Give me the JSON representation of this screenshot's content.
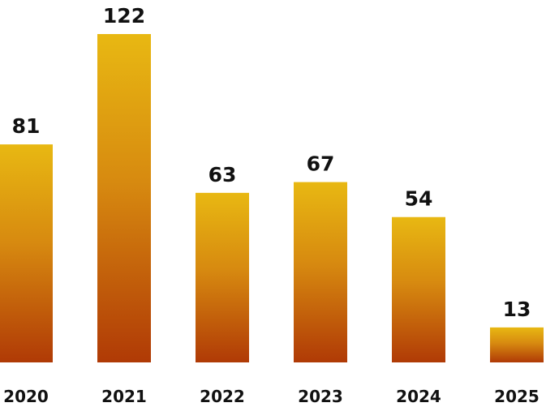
{
  "chart_data": {
    "type": "bar",
    "categories": [
      "2020",
      "2021",
      "2022",
      "2023",
      "2024",
      "2025"
    ],
    "values": [
      81,
      122,
      63,
      67,
      54,
      13
    ],
    "title": "",
    "xlabel": "",
    "ylabel": "",
    "ylim": [
      0,
      122
    ],
    "grid": false,
    "legend": "none",
    "data_labels": true
  },
  "colors": {
    "bar_top": "#e8b812",
    "bar_bottom": "#b03a06",
    "label_text": "#111111",
    "background": "#ffffff"
  }
}
